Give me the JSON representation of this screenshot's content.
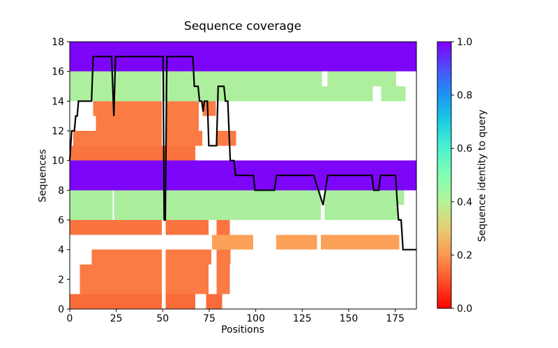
{
  "figure": {
    "background": "#FFFFFF"
  },
  "chart_data": {
    "type": "heatmap",
    "title": "Sequence coverage",
    "xlabel": "Positions",
    "ylabel": "Sequences",
    "xlim": [
      0,
      186.4
    ],
    "ylim": [
      0,
      18
    ],
    "x_ticks": [
      0,
      25,
      50,
      75,
      100,
      125,
      150,
      175
    ],
    "y_ticks": [
      0,
      2,
      4,
      6,
      8,
      10,
      12,
      14,
      16,
      18
    ],
    "grid": false,
    "legend": "none",
    "axes_color": "#000000",
    "rows_note": "each row is one aligned sequence drawn from y to y+1; segments are [start,end] in Positions; color encodes sequence identity to query",
    "rows": [
      {
        "y": 0,
        "identity": 0.14,
        "color": "#FA6B3A",
        "segments": [
          [
            0,
            49.6
          ],
          [
            51.5,
            67.5
          ],
          [
            73.4,
            82
          ]
        ]
      },
      {
        "y": 1,
        "identity": 0.17,
        "color": "#FA7B44",
        "segments": [
          [
            5.4,
            49.6
          ],
          [
            51.5,
            74.6
          ],
          [
            79,
            86
          ]
        ]
      },
      {
        "y": 2,
        "identity": 0.17,
        "color": "#FA7B44",
        "segments": [
          [
            5.4,
            49.6
          ],
          [
            51.5,
            74.6
          ],
          [
            79,
            86
          ]
        ]
      },
      {
        "y": 3,
        "identity": 0.17,
        "color": "#FA7B44",
        "segments": [
          [
            11.9,
            49.6
          ],
          [
            51.5,
            76.2
          ],
          [
            79,
            86.4
          ]
        ]
      },
      {
        "y": 4,
        "identity": 0.22,
        "color": "#FBA158",
        "segments": [
          [
            76.5,
            98.7
          ],
          [
            111,
            133
          ],
          [
            135,
            177.2
          ]
        ]
      },
      {
        "y": 5,
        "identity": 0.16,
        "color": "#FA7440",
        "segments": [
          [
            0,
            49.6
          ],
          [
            51.5,
            74.6
          ],
          [
            79,
            86
          ]
        ]
      },
      {
        "y": 6,
        "identity": 0.43,
        "color": "#A9EF9D",
        "segments": [
          [
            0,
            23.1
          ],
          [
            23.9,
            135
          ],
          [
            137,
            176.7
          ]
        ]
      },
      {
        "y": 7,
        "identity": 0.43,
        "color": "#A9EF9D",
        "segments": [
          [
            0,
            23.1
          ],
          [
            23.9,
            135
          ],
          [
            137,
            179.8
          ]
        ]
      },
      {
        "y": 8,
        "identity": 1.0,
        "color": "#7D05FA",
        "segments": [
          [
            0,
            186.4
          ]
        ]
      },
      {
        "y": 9,
        "identity": 1.0,
        "color": "#7D05FA",
        "segments": [
          [
            0,
            186.4
          ]
        ]
      },
      {
        "y": 10,
        "identity": 0.16,
        "color": "#FA7440",
        "segments": [
          [
            0.5,
            67.5
          ]
        ]
      },
      {
        "y": 11,
        "identity": 0.17,
        "color": "#FA7B44",
        "segments": [
          [
            1.9,
            49.6
          ],
          [
            51.5,
            71.2
          ],
          [
            79,
            89.4
          ]
        ]
      },
      {
        "y": 12,
        "identity": 0.17,
        "color": "#FA7B44",
        "segments": [
          [
            14,
            49.6
          ],
          [
            51.5,
            69.4
          ]
        ]
      },
      {
        "y": 13,
        "identity": 0.17,
        "color": "#FA7B44",
        "segments": [
          [
            12.5,
            49.6
          ],
          [
            51.5,
            69.4
          ],
          [
            71.5,
            78.5
          ]
        ]
      },
      {
        "y": 14,
        "identity": 0.43,
        "color": "#ADEF9D",
        "segments": [
          [
            0,
            49.4
          ],
          [
            50.2,
            163
          ],
          [
            167.5,
            180.6
          ]
        ]
      },
      {
        "y": 15,
        "identity": 0.43,
        "color": "#ADEF9D",
        "segments": [
          [
            0,
            49.4
          ],
          [
            50.2,
            135.5
          ],
          [
            138.5,
            175.6
          ]
        ]
      },
      {
        "y": 16,
        "identity": 1.0,
        "color": "#7D05FA",
        "segments": [
          [
            0,
            186.4
          ]
        ]
      },
      {
        "y": 17,
        "identity": 1.0,
        "color": "#7D05FA",
        "segments": [
          [
            0,
            186.4
          ]
        ]
      }
    ],
    "coverage_line": {
      "color": "#000000",
      "points": [
        [
          0,
          10
        ],
        [
          1,
          12
        ],
        [
          2.5,
          12
        ],
        [
          3.2,
          13
        ],
        [
          4,
          13
        ],
        [
          4.7,
          14
        ],
        [
          11.7,
          14
        ],
        [
          12.6,
          17
        ],
        [
          22.5,
          17
        ],
        [
          23.7,
          13
        ],
        [
          24.6,
          17
        ],
        [
          50.2,
          17
        ],
        [
          50.8,
          6
        ],
        [
          51.4,
          6
        ],
        [
          52.2,
          17
        ],
        [
          66.2,
          17
        ],
        [
          67,
          15
        ],
        [
          69,
          15
        ],
        [
          69.8,
          14
        ],
        [
          71,
          14
        ],
        [
          71.7,
          13.3
        ],
        [
          72.4,
          14
        ],
        [
          74,
          14
        ],
        [
          74.8,
          11
        ],
        [
          78.9,
          11
        ],
        [
          79.8,
          15
        ],
        [
          82.9,
          15
        ],
        [
          83.7,
          14
        ],
        [
          85,
          14
        ],
        [
          86.3,
          10
        ],
        [
          88.3,
          10
        ],
        [
          89.2,
          9
        ],
        [
          98.7,
          9
        ],
        [
          99.6,
          8
        ],
        [
          110,
          8
        ],
        [
          111.2,
          9
        ],
        [
          131.2,
          9
        ],
        [
          136.2,
          7
        ],
        [
          138.7,
          9
        ],
        [
          162.5,
          9
        ],
        [
          163.4,
          8
        ],
        [
          166.2,
          8
        ],
        [
          167.1,
          9
        ],
        [
          175.2,
          9
        ],
        [
          176.2,
          7
        ],
        [
          176.8,
          6
        ],
        [
          178.2,
          6
        ],
        [
          179.2,
          4
        ],
        [
          186.4,
          4
        ]
      ]
    },
    "colorbar": {
      "label": "Sequence identity to query",
      "vmin": 0.0,
      "vmax": 1.0,
      "ticks": [
        {
          "v": 0.0,
          "label": "0.0"
        },
        {
          "v": 0.2,
          "label": "0.2"
        },
        {
          "v": 0.4,
          "label": "0.4"
        },
        {
          "v": 0.6,
          "label": "0.6"
        },
        {
          "v": 0.8,
          "label": "0.8"
        },
        {
          "v": 1.0,
          "label": "1.0"
        }
      ],
      "gradient": [
        {
          "v": 0.0,
          "c": "#FF0000"
        },
        {
          "v": 0.1,
          "c": "#FF4F28"
        },
        {
          "v": 0.2,
          "c": "#FF964F"
        },
        {
          "v": 0.3,
          "c": "#E6CE74"
        },
        {
          "v": 0.4,
          "c": "#B3F396"
        },
        {
          "v": 0.5,
          "c": "#80FFB5"
        },
        {
          "v": 0.6,
          "c": "#4DF3CE"
        },
        {
          "v": 0.7,
          "c": "#1ACEE3"
        },
        {
          "v": 0.8,
          "c": "#1A96F3"
        },
        {
          "v": 0.9,
          "c": "#4D4FFC"
        },
        {
          "v": 1.0,
          "c": "#8000FF"
        }
      ]
    }
  }
}
